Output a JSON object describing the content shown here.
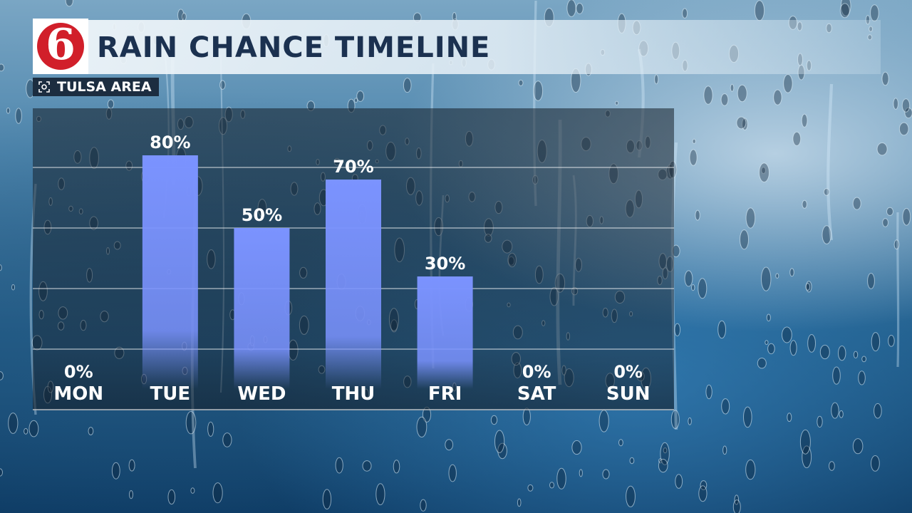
{
  "header": {
    "logo_text": "6",
    "title": "RAIN CHANCE TIMELINE",
    "location": "TULSA AREA"
  },
  "colors": {
    "bar": "#7b93ff",
    "title_text": "#1b3150",
    "logo_red": "#d11f2a",
    "location_bg": "#1c2d40"
  },
  "icons": {
    "location_icon": "target-icon",
    "background": "rain-drops-on-glass"
  },
  "chart_data": {
    "type": "bar",
    "title": "RAIN CHANCE TIMELINE",
    "xlabel": "",
    "ylabel": "",
    "categories": [
      "MON",
      "TUE",
      "WED",
      "THU",
      "FRI",
      "SAT",
      "SUN"
    ],
    "values": [
      0,
      80,
      50,
      70,
      30,
      0,
      0
    ],
    "labels": [
      "0%",
      "80%",
      "50%",
      "70%",
      "30%",
      "0%",
      "0%"
    ],
    "ylim": [
      0,
      100
    ],
    "grid": true,
    "legend": "none"
  }
}
